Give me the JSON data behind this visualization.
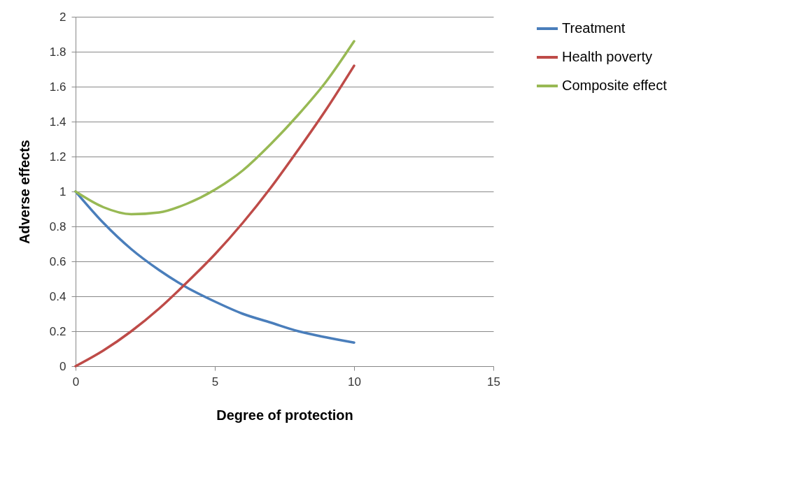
{
  "chart_data": {
    "type": "line",
    "xlabel": "Degree of protection",
    "ylabel": "Adverse effects",
    "x": [
      0,
      1,
      2,
      3,
      4,
      5,
      6,
      7,
      8,
      9,
      10
    ],
    "series": [
      {
        "name": "Treatment",
        "color": "#4a7ebb",
        "values": [
          1,
          0.82,
          0.67,
          0.55,
          0.45,
          0.37,
          0.3,
          0.25,
          0.2,
          0.165,
          0.135
        ]
      },
      {
        "name": "Health poverty",
        "color": "#be4b48",
        "values": [
          0,
          0.09,
          0.2,
          0.33,
          0.48,
          0.64,
          0.82,
          1.02,
          1.24,
          1.47,
          1.72
        ]
      },
      {
        "name": "Composite effect",
        "color": "#98b954",
        "values": [
          1,
          0.91,
          0.87,
          0.88,
          0.93,
          1.01,
          1.12,
          1.27,
          1.44,
          1.63,
          1.86
        ]
      }
    ],
    "xlim": [
      0,
      15
    ],
    "xticks": [
      0,
      5,
      10,
      15
    ],
    "ylim": [
      0,
      2
    ],
    "yticks": [
      0,
      0.2,
      0.4,
      0.6,
      0.8,
      1,
      1.2,
      1.4,
      1.6,
      1.8,
      2
    ],
    "grid": "y",
    "legend": "right",
    "marker": "none",
    "line_style": "solid"
  }
}
